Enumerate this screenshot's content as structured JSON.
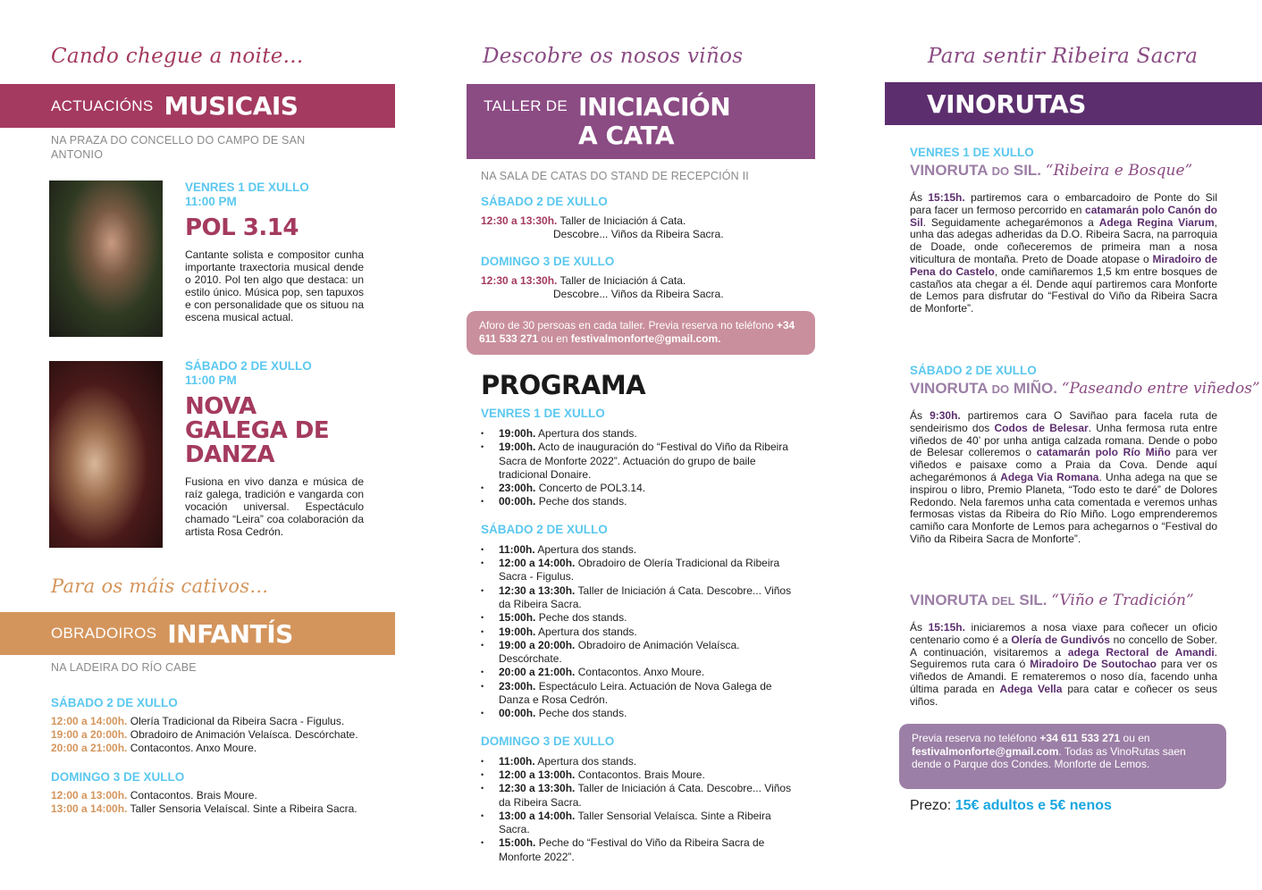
{
  "left": {
    "script_title": "Cando chegue a noite...",
    "band": {
      "light": "ACTUACIÓNS",
      "heavy": "MUSICAIS",
      "color": "#a43a5f"
    },
    "location": "NA PRAZA DO CONCELLO DO CAMPO DE SAN ANTONIO",
    "acts": [
      {
        "date": "VENRES 1 DE XULLO",
        "time": "11:00 PM",
        "name": "POL 3.14",
        "desc": "Cantante solista e compositor cunha importante traxectoria musical dende o 2010. Pol ten algo que destaca: un estilo único. Música pop, sen tapuxos e con personalidade que os situou na escena musical actual."
      },
      {
        "date": "SÁBADO 2 DE XULLO",
        "time": "11:00 PM",
        "name": "NOVA GALEGA DE DANZA",
        "desc": "Fusiona en vivo danza e música de raíz galega, tradición e vangarda con vocación universal. Espectáculo chamado “Leira” coa colaboración da artista Rosa Cedrón."
      }
    ],
    "script_title_2": "Para os máis cativos...",
    "band2": {
      "light": "OBRADOIROS",
      "heavy": "INFANTÍS",
      "color": "#d4955c"
    },
    "location2": "NA LADEIRA DO RÍO CABE",
    "days": [
      {
        "date": "SÁBADO 2 DE XULLO",
        "items": [
          {
            "time": "12:00 a 14:00h.",
            "text": "Olería Tradicional da Ribeira Sacra - Figulus."
          },
          {
            "time": "19:00 a 20:00h.",
            "text": "Obradoiro de Animación Velaísca. Descórchate."
          },
          {
            "time": "20:00 a 21:00h.",
            "text": "Contacontos. Anxo Moure."
          }
        ]
      },
      {
        "date": "DOMINGO 3 DE XULLO",
        "items": [
          {
            "time": "12:00 a 13:00h.",
            "text": "Contacontos. Brais Moure."
          },
          {
            "time": "13:00 a 14:00h.",
            "text": "Taller Sensoria Velaíscal. Sinte a Ribeira Sacra."
          }
        ]
      }
    ]
  },
  "center": {
    "script_title": "Descobre os nosos viños",
    "band": {
      "light": "TALLER DE",
      "heavy1": "INICIACIÓN",
      "heavy2": "A CATA",
      "color": "#8b4b83"
    },
    "location": "NA SALA DE CATAS DO STAND DE RECEPCIÓN II",
    "days": [
      {
        "date": "SÁBADO 2 DE XULLO",
        "time": "12:30 a 13:30h.",
        "line1": "Taller de Iniciación á Cata.",
        "line2": "Descobre... Viños da Ribeira Sacra."
      },
      {
        "date": "DOMINGO 3 DE XULLO",
        "time": "12:30 a 13:30h.",
        "line1": "Taller de Iniciación á Cata.",
        "line2": "Descobre... Viños da Ribeira Sacra."
      }
    ],
    "notice": [
      {
        "t": "Aforo de 30 persoas en cada taller. Previa reserva no teléfono ",
        "b": false
      },
      {
        "t": "+34 611 533 271",
        "b": true
      },
      {
        "t": " ou en ",
        "b": false
      },
      {
        "t": "festivalmonforte@gmail.com.",
        "b": true
      }
    ],
    "notice_color": "#c98f9d",
    "programa": {
      "title": "PROGRAMA",
      "days": [
        {
          "date": "VENRES 1 DE XULLO",
          "items": [
            {
              "time": "19:00h.",
              "text": "Apertura dos stands."
            },
            {
              "time": "19:00h.",
              "text": "Acto de inauguración do “Festival do Viño da Ribeira Sacra de Monforte 2022”. Actuación do grupo de baile tradicional Donaire."
            },
            {
              "time": "23:00h.",
              "text": "Concerto de POL3.14."
            },
            {
              "time": "00:00h.",
              "text": "Peche dos stands."
            }
          ]
        },
        {
          "date": "SÁBADO 2 DE XULLO",
          "items": [
            {
              "time": "11:00h.",
              "text": "Apertura dos stands."
            },
            {
              "time": "12:00 a 14:00h.",
              "text": "Obradoiro de Olería Tradicional da Ribeira Sacra - Figulus."
            },
            {
              "time": "12:30 a 13:30h.",
              "text": "Taller de Iniciación á Cata. Descobre... Viños da Ribeira Sacra."
            },
            {
              "time": "15:00h.",
              "text": "Peche dos stands."
            },
            {
              "time": "19:00h.",
              "text": "Apertura dos stands."
            },
            {
              "time": "19:00 a 20:00h.",
              "text": "Obradoiro de Animación Velaísca. Descórchate."
            },
            {
              "time": "20:00 a 21:00h.",
              "text": "Contacontos. Anxo Moure."
            },
            {
              "time": "23:00h.",
              "text": "Espectáculo Leira. Actuación de Nova Galega de Danza e Rosa Cedrón."
            },
            {
              "time": "00:00h.",
              "text": "Peche dos stands."
            }
          ]
        },
        {
          "date": "DOMINGO 3 DE XULLO",
          "items": [
            {
              "time": "11:00h.",
              "text": "Apertura dos stands."
            },
            {
              "time": "12:00 a 13:00h.",
              "text": "Contacontos. Brais Moure."
            },
            {
              "time": "12:30 a 13:30h.",
              "text": "Taller de Iniciación á Cata. Descobre... Viños da Ribeira Sacra."
            },
            {
              "time": "13:00 a 14:00h.",
              "text": "Taller Sensorial Velaísca. Sinte a Ribeira Sacra."
            },
            {
              "time": "15:00h.",
              "text": "Peche do “Festival do Viño da Ribeira Sacra de Monforte 2022”."
            }
          ]
        }
      ]
    }
  },
  "right": {
    "script_title": "Para sentir Ribeira Sacra",
    "band": {
      "heavy": "VINORUTAS",
      "color": "#5c2e6e"
    },
    "routes": [
      {
        "date": "VENRES 1 DE XULLO",
        "t1": "VINORUTA",
        "t2": "DO",
        "t3": "SIL.",
        "quote": "“Ribeira e Bosque”",
        "body": [
          {
            "t": "Ás ",
            "b": false
          },
          {
            "t": "15:15h.",
            "b": true
          },
          {
            "t": " partiremos cara o embarcadoiro de Ponte do Sil para facer un fermoso percorrido en ",
            "b": false
          },
          {
            "t": "catamarán polo Canón do Sil",
            "b": true
          },
          {
            "t": ". Seguidamente achegarémonos a ",
            "b": false
          },
          {
            "t": "Adega Regina Viarum",
            "b": true
          },
          {
            "t": ", unha das adegas adheridas da D.O. Ribeira Sacra, na parroquia de Doade, onde coñeceremos de primeira man a nosa viticultura de montaña. Preto de Doade atopase o ",
            "b": false
          },
          {
            "t": "Miradoiro de Pena do Castelo",
            "b": true
          },
          {
            "t": ", onde camiñaremos 1,5 km entre bosques de castaños ata chegar a él. Dende aquí partiremos cara Monforte de Lemos para disfrutar do “Festival do Viño da Ribeira Sacra de Monforte”.",
            "b": false
          }
        ]
      },
      {
        "date": "SÁBADO 2 DE XULLO",
        "t1": "VINORUTA",
        "t2": "DO",
        "t3": "MIÑO.",
        "quote": "“Paseando entre viñedos”",
        "body": [
          {
            "t": "Ás ",
            "b": false
          },
          {
            "t": "9:30h.",
            "b": true
          },
          {
            "t": " partiremos cara O Saviñao para facela ruta de sendeirismo dos ",
            "b": false
          },
          {
            "t": "Codos de Belesar",
            "b": true
          },
          {
            "t": ". Unha fermosa ruta entre viñedos de 40’ por unha antiga calzada romana. Dende o pobo de Belesar colleremos o ",
            "b": false
          },
          {
            "t": "catamarán polo Río Miño",
            "b": true
          },
          {
            "t": " para ver viñedos e paisaxe como a Praia da Cova. Dende aquí achegarémonos á ",
            "b": false
          },
          {
            "t": "Adega Via Romana",
            "b": true
          },
          {
            "t": ". Unha adega na que se inspirou o libro, Premio Planeta, “Todo esto te daré” de Dolores Redondo. Nela faremos unha cata comentada e veremos unhas fermosas vistas da Ribeira do Río Miño. Logo emprenderemos camiño cara Monforte de Lemos para achegarnos o “Festival do Viño da Ribeira Sacra de Monforte”.",
            "b": false
          }
        ]
      },
      {
        "date": "",
        "t1": "VINORUTA",
        "t2": "DEL",
        "t3": "SIL.",
        "quote": "“Viño e Tradición”",
        "body": [
          {
            "t": "Ás ",
            "b": false
          },
          {
            "t": "15:15h.",
            "b": true
          },
          {
            "t": " iniciaremos a nosa viaxe para coñecer un oficio centenario como é a ",
            "b": false
          },
          {
            "t": "Olería de Gundivós",
            "b": true
          },
          {
            "t": " no concello de Sober. A continuación, visitaremos a ",
            "b": false
          },
          {
            "t": "adega Rectoral de Amandi",
            "b": true
          },
          {
            "t": ". Seguiremos ruta cara ó ",
            "b": false
          },
          {
            "t": "Miradoiro De Soutochao",
            "b": true
          },
          {
            "t": " para ver os viñedos de Amandi. E remateremos o noso día, facendo unha última parada en ",
            "b": false
          },
          {
            "t": "Adega Vella",
            "b": true
          },
          {
            "t": " para catar e coñecer os seus viños.",
            "b": false
          }
        ]
      }
    ],
    "notice": [
      {
        "t": "Previa reserva no teléfono ",
        "b": false
      },
      {
        "t": "+34 611 533 271",
        "b": true
      },
      {
        "t": " ou en ",
        "b": false
      },
      {
        "t": "festivalmonforte@gmail.com",
        "b": true
      },
      {
        "t": ". Todas as VinoRutas saen dende o Parque dos Condes. Monforte de Lemos.",
        "b": false
      }
    ],
    "notice_color": "#9c7fa6",
    "price_label": "Prezo:",
    "price_value": "15€ adultos e 5€ nenos"
  }
}
